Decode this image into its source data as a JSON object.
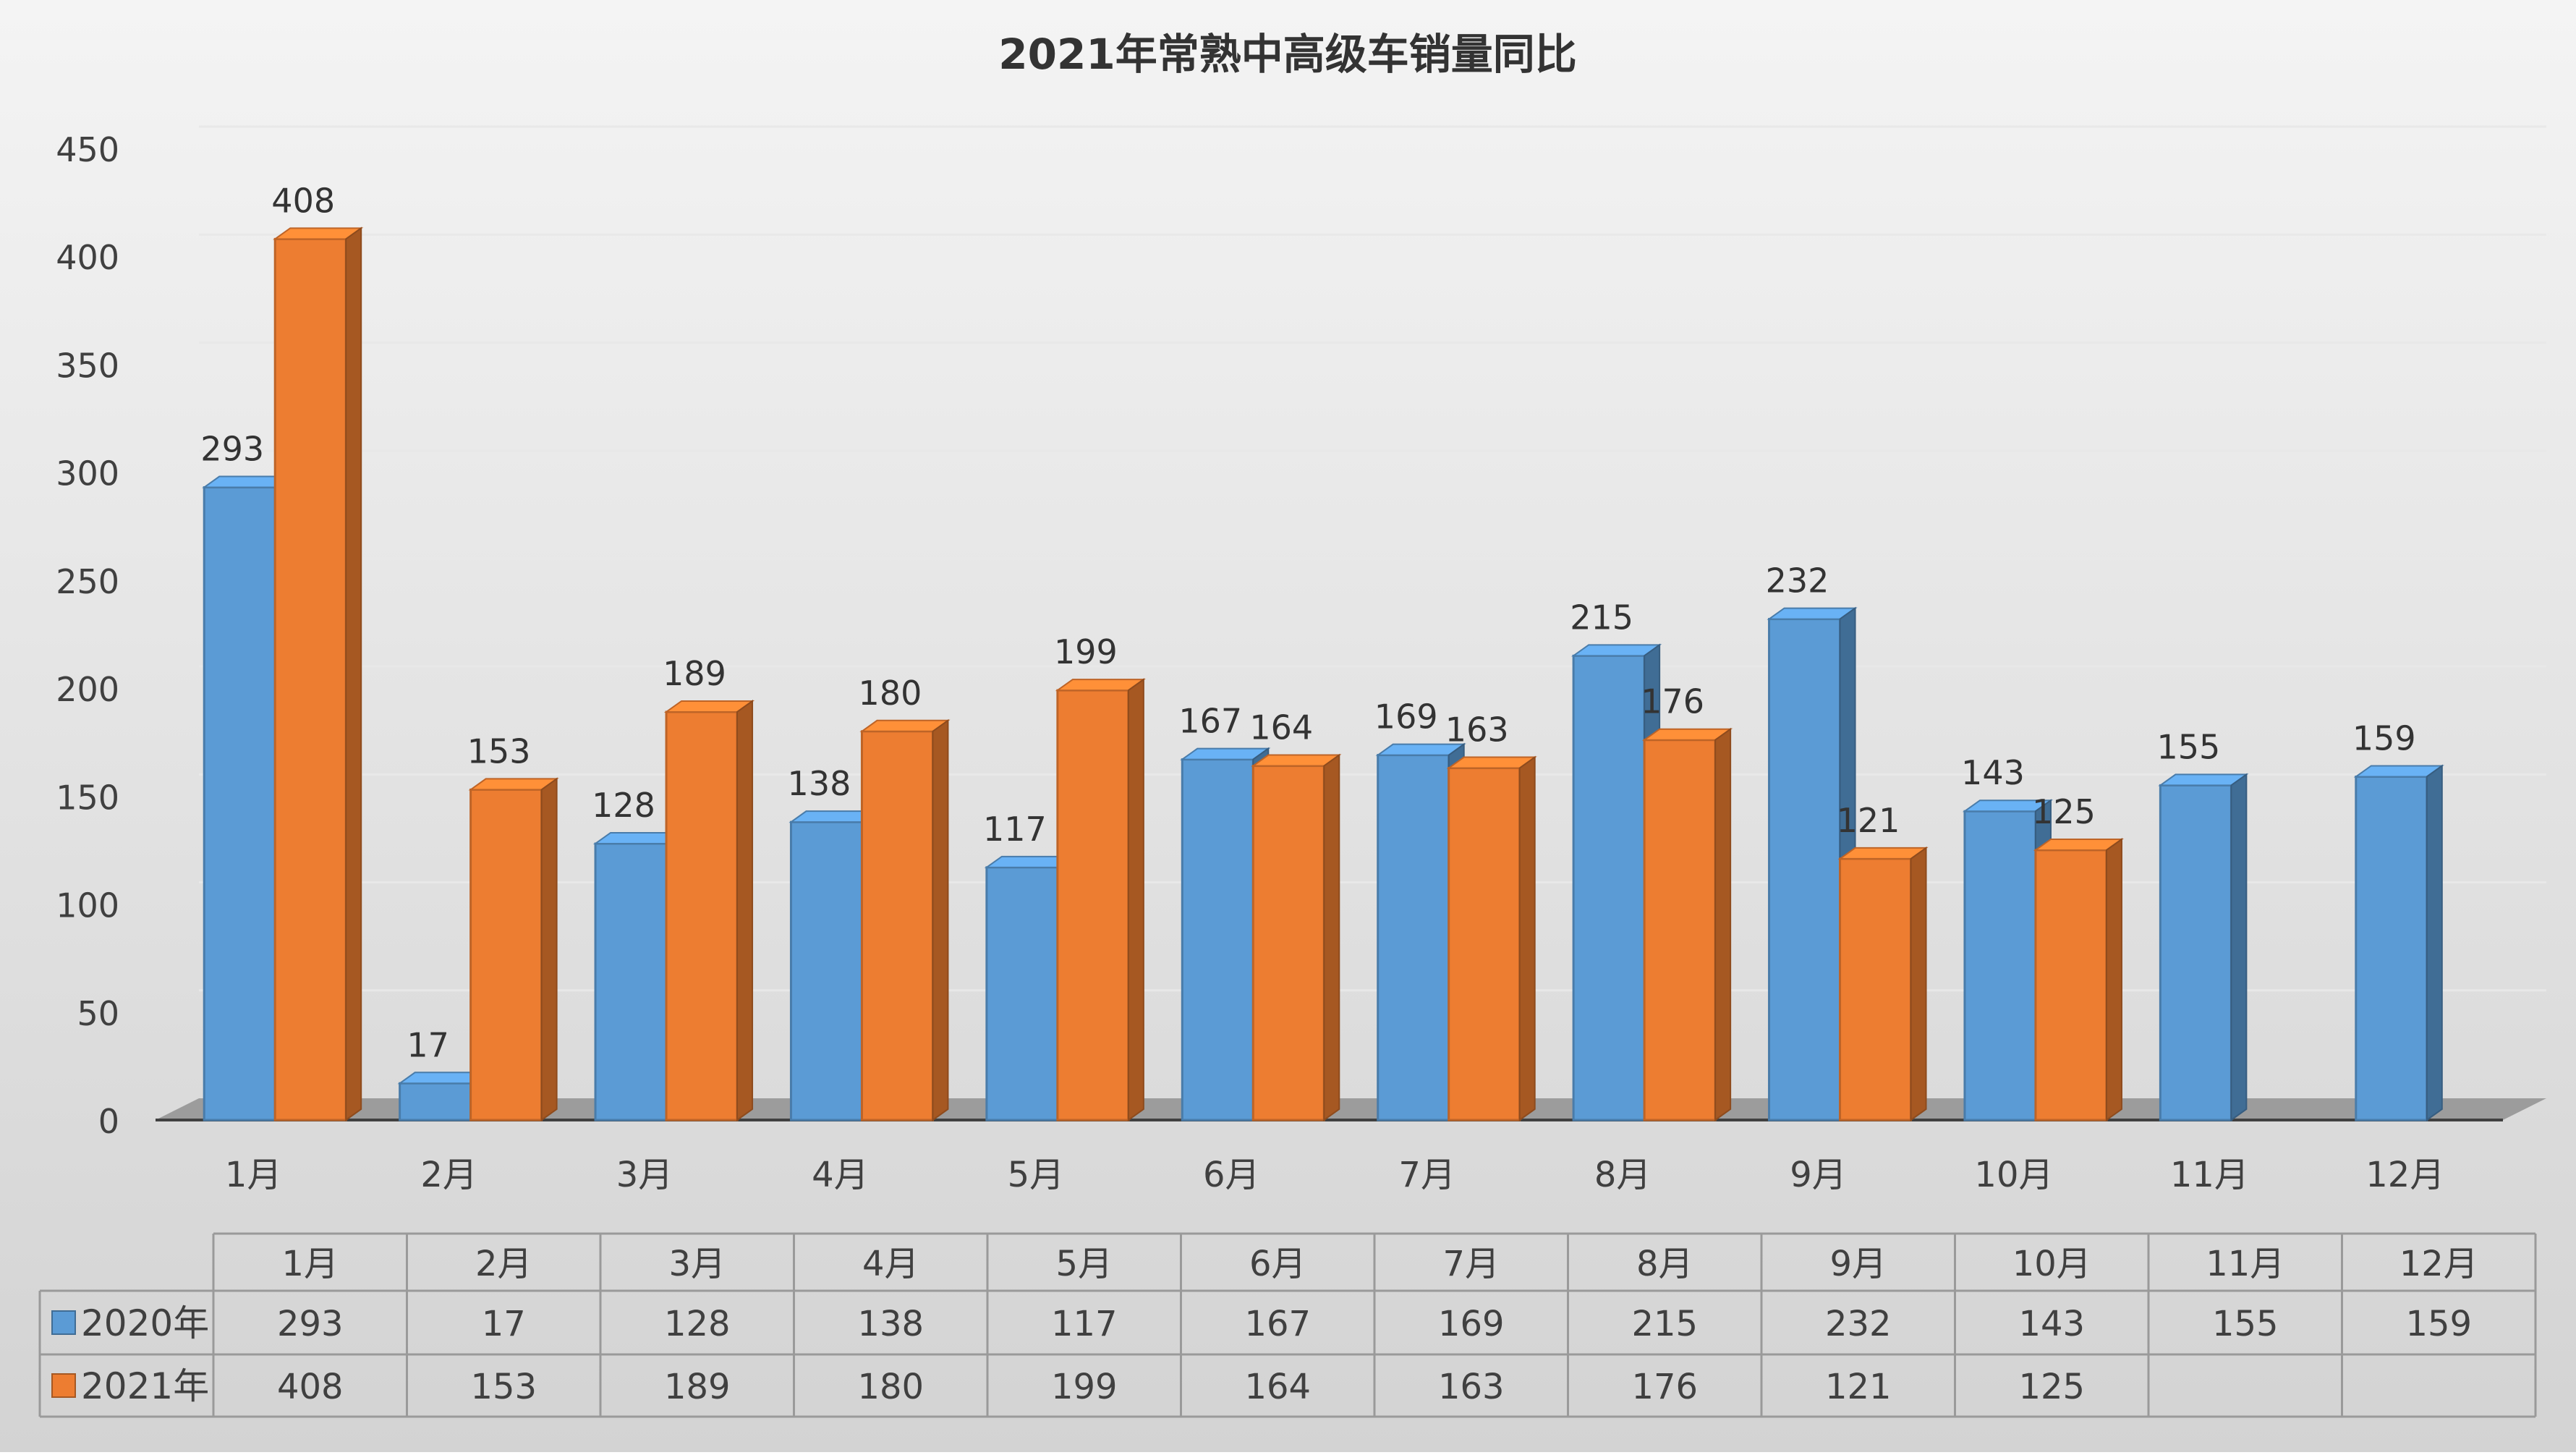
{
  "chart_data": {
    "type": "bar",
    "title": "2021年常熟中高级车销量同比",
    "categories": [
      "1月",
      "2月",
      "3月",
      "4月",
      "5月",
      "6月",
      "7月",
      "8月",
      "9月",
      "10月",
      "11月",
      "12月"
    ],
    "series": [
      {
        "name": "2020年",
        "values": [
          293,
          17,
          128,
          138,
          117,
          167,
          169,
          215,
          232,
          143,
          155,
          159
        ],
        "color": "#5B9BD5"
      },
      {
        "name": "2021年",
        "values": [
          408,
          153,
          189,
          180,
          199,
          164,
          163,
          176,
          121,
          125,
          null,
          null
        ],
        "color": "#ED7D31"
      }
    ],
    "ylim": [
      0,
      450
    ],
    "yticks": [
      0,
      50,
      100,
      150,
      200,
      250,
      300,
      350,
      400,
      450
    ],
    "grid": true,
    "legend": "data-table",
    "data_table": true,
    "style": "3d-clustered-column"
  }
}
